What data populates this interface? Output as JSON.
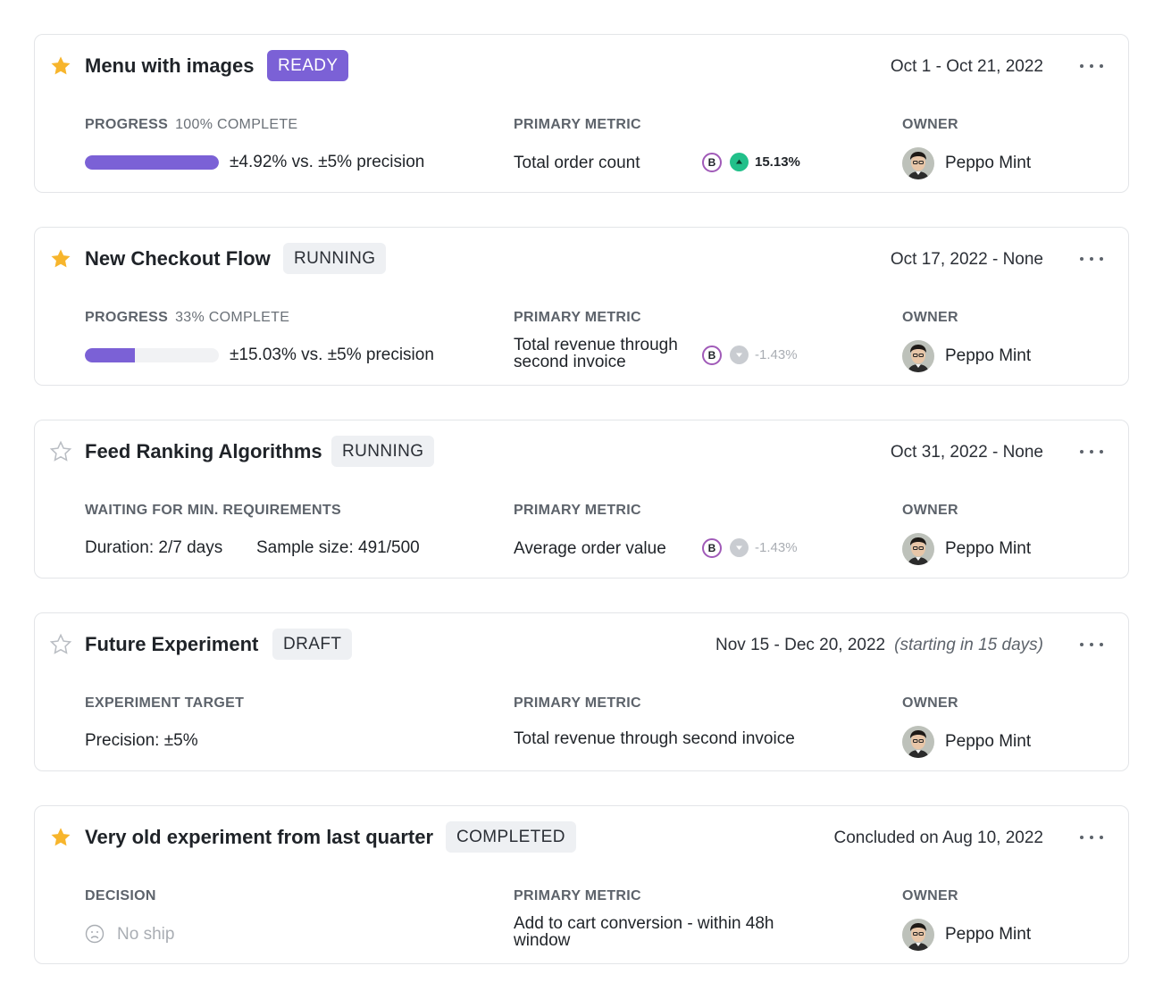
{
  "experiments": [
    {
      "starred": true,
      "title": "Menu with images",
      "status": "READY",
      "dates": "Oct 1 - Oct 21, 2022",
      "left_label": "PROGRESS",
      "left_sublabel": "100% COMPLETE",
      "progress": 1.0,
      "precision_text": "±4.92% vs. ±5% precision",
      "metric_label": "PRIMARY METRIC",
      "metric_name": "Total order count",
      "metric_chip": "B",
      "metric_delta": "15.13%",
      "owner_label": "OWNER",
      "owner_name": "Peppo Mint"
    },
    {
      "starred": true,
      "title": "New Checkout Flow",
      "status": "RUNNING",
      "dates": "Oct 17, 2022 - None",
      "left_label": "PROGRESS",
      "left_sublabel": "33% COMPLETE",
      "progress": 0.33,
      "precision_text": "±15.03% vs. ±5% precision",
      "metric_label": "PRIMARY METRIC",
      "metric_name": "Total revenue through second invoice",
      "metric_chip": "B",
      "metric_delta": "-1.43%",
      "owner_label": "OWNER",
      "owner_name": "Peppo Mint"
    },
    {
      "starred": false,
      "title": "Feed Ranking Algorithms",
      "status": "RUNNING",
      "dates": "Oct 31, 2022 - None",
      "left_label": "WAITING FOR MIN. REQUIREMENTS",
      "duration": "Duration: 2/7 days",
      "sample_size": "Sample size: 491/500",
      "metric_label": "PRIMARY METRIC",
      "metric_name": "Average order value",
      "metric_chip": "B",
      "metric_delta": "-1.43%",
      "owner_label": "OWNER",
      "owner_name": "Peppo Mint"
    },
    {
      "starred": false,
      "title": "Future Experiment",
      "status": "DRAFT",
      "dates": "Nov 15 - Dec 20, 2022",
      "dates_note": "(starting in 15 days)",
      "left_label": "EXPERIMENT TARGET",
      "target_text": "Precision:  ±5%",
      "metric_label": "PRIMARY METRIC",
      "metric_name": "Total revenue through second invoice",
      "owner_label": "OWNER",
      "owner_name": "Peppo Mint"
    },
    {
      "starred": true,
      "title": "Very old experiment from last quarter",
      "status": "COMPLETED",
      "dates": "Concluded on Aug 10, 2022",
      "left_label": "DECISION",
      "decision": "No ship",
      "metric_label": "PRIMARY METRIC",
      "metric_name": "Add to cart conversion - within 48h window",
      "owner_label": "OWNER",
      "owner_name": "Peppo Mint"
    }
  ],
  "icons": {
    "star_filled_color": "#f7b52c",
    "star_empty_color": "#b9bdc3",
    "ready_badge_color": "#7b61d6",
    "positive_color": "#22c08a"
  }
}
